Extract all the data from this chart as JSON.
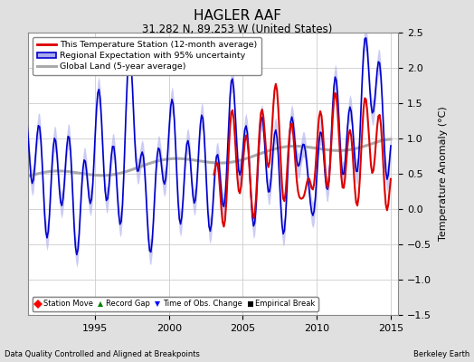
{
  "title": "HAGLER AAF",
  "subtitle": "31.282 N, 89.253 W (United States)",
  "xlabel_left": "Data Quality Controlled and Aligned at Breakpoints",
  "xlabel_right": "Berkeley Earth",
  "ylabel": "Temperature Anomaly (°C)",
  "xlim": [
    1990.5,
    2015.5
  ],
  "ylim": [
    -1.5,
    2.5
  ],
  "yticks": [
    -1.5,
    -1.0,
    -0.5,
    0.0,
    0.5,
    1.0,
    1.5,
    2.0,
    2.5
  ],
  "xticks": [
    1995,
    2000,
    2005,
    2010,
    2015
  ],
  "bg_color": "#e0e0e0",
  "plot_bg": "#ffffff",
  "red_line_color": "#dd0000",
  "blue_line_color": "#0000cc",
  "blue_fill_color": "#aaaaee",
  "gray_line_color": "#aaaaaa",
  "legend_entries": [
    "This Temperature Station (12-month average)",
    "Regional Expectation with 95% uncertainty",
    "Global Land (5-year average)"
  ]
}
